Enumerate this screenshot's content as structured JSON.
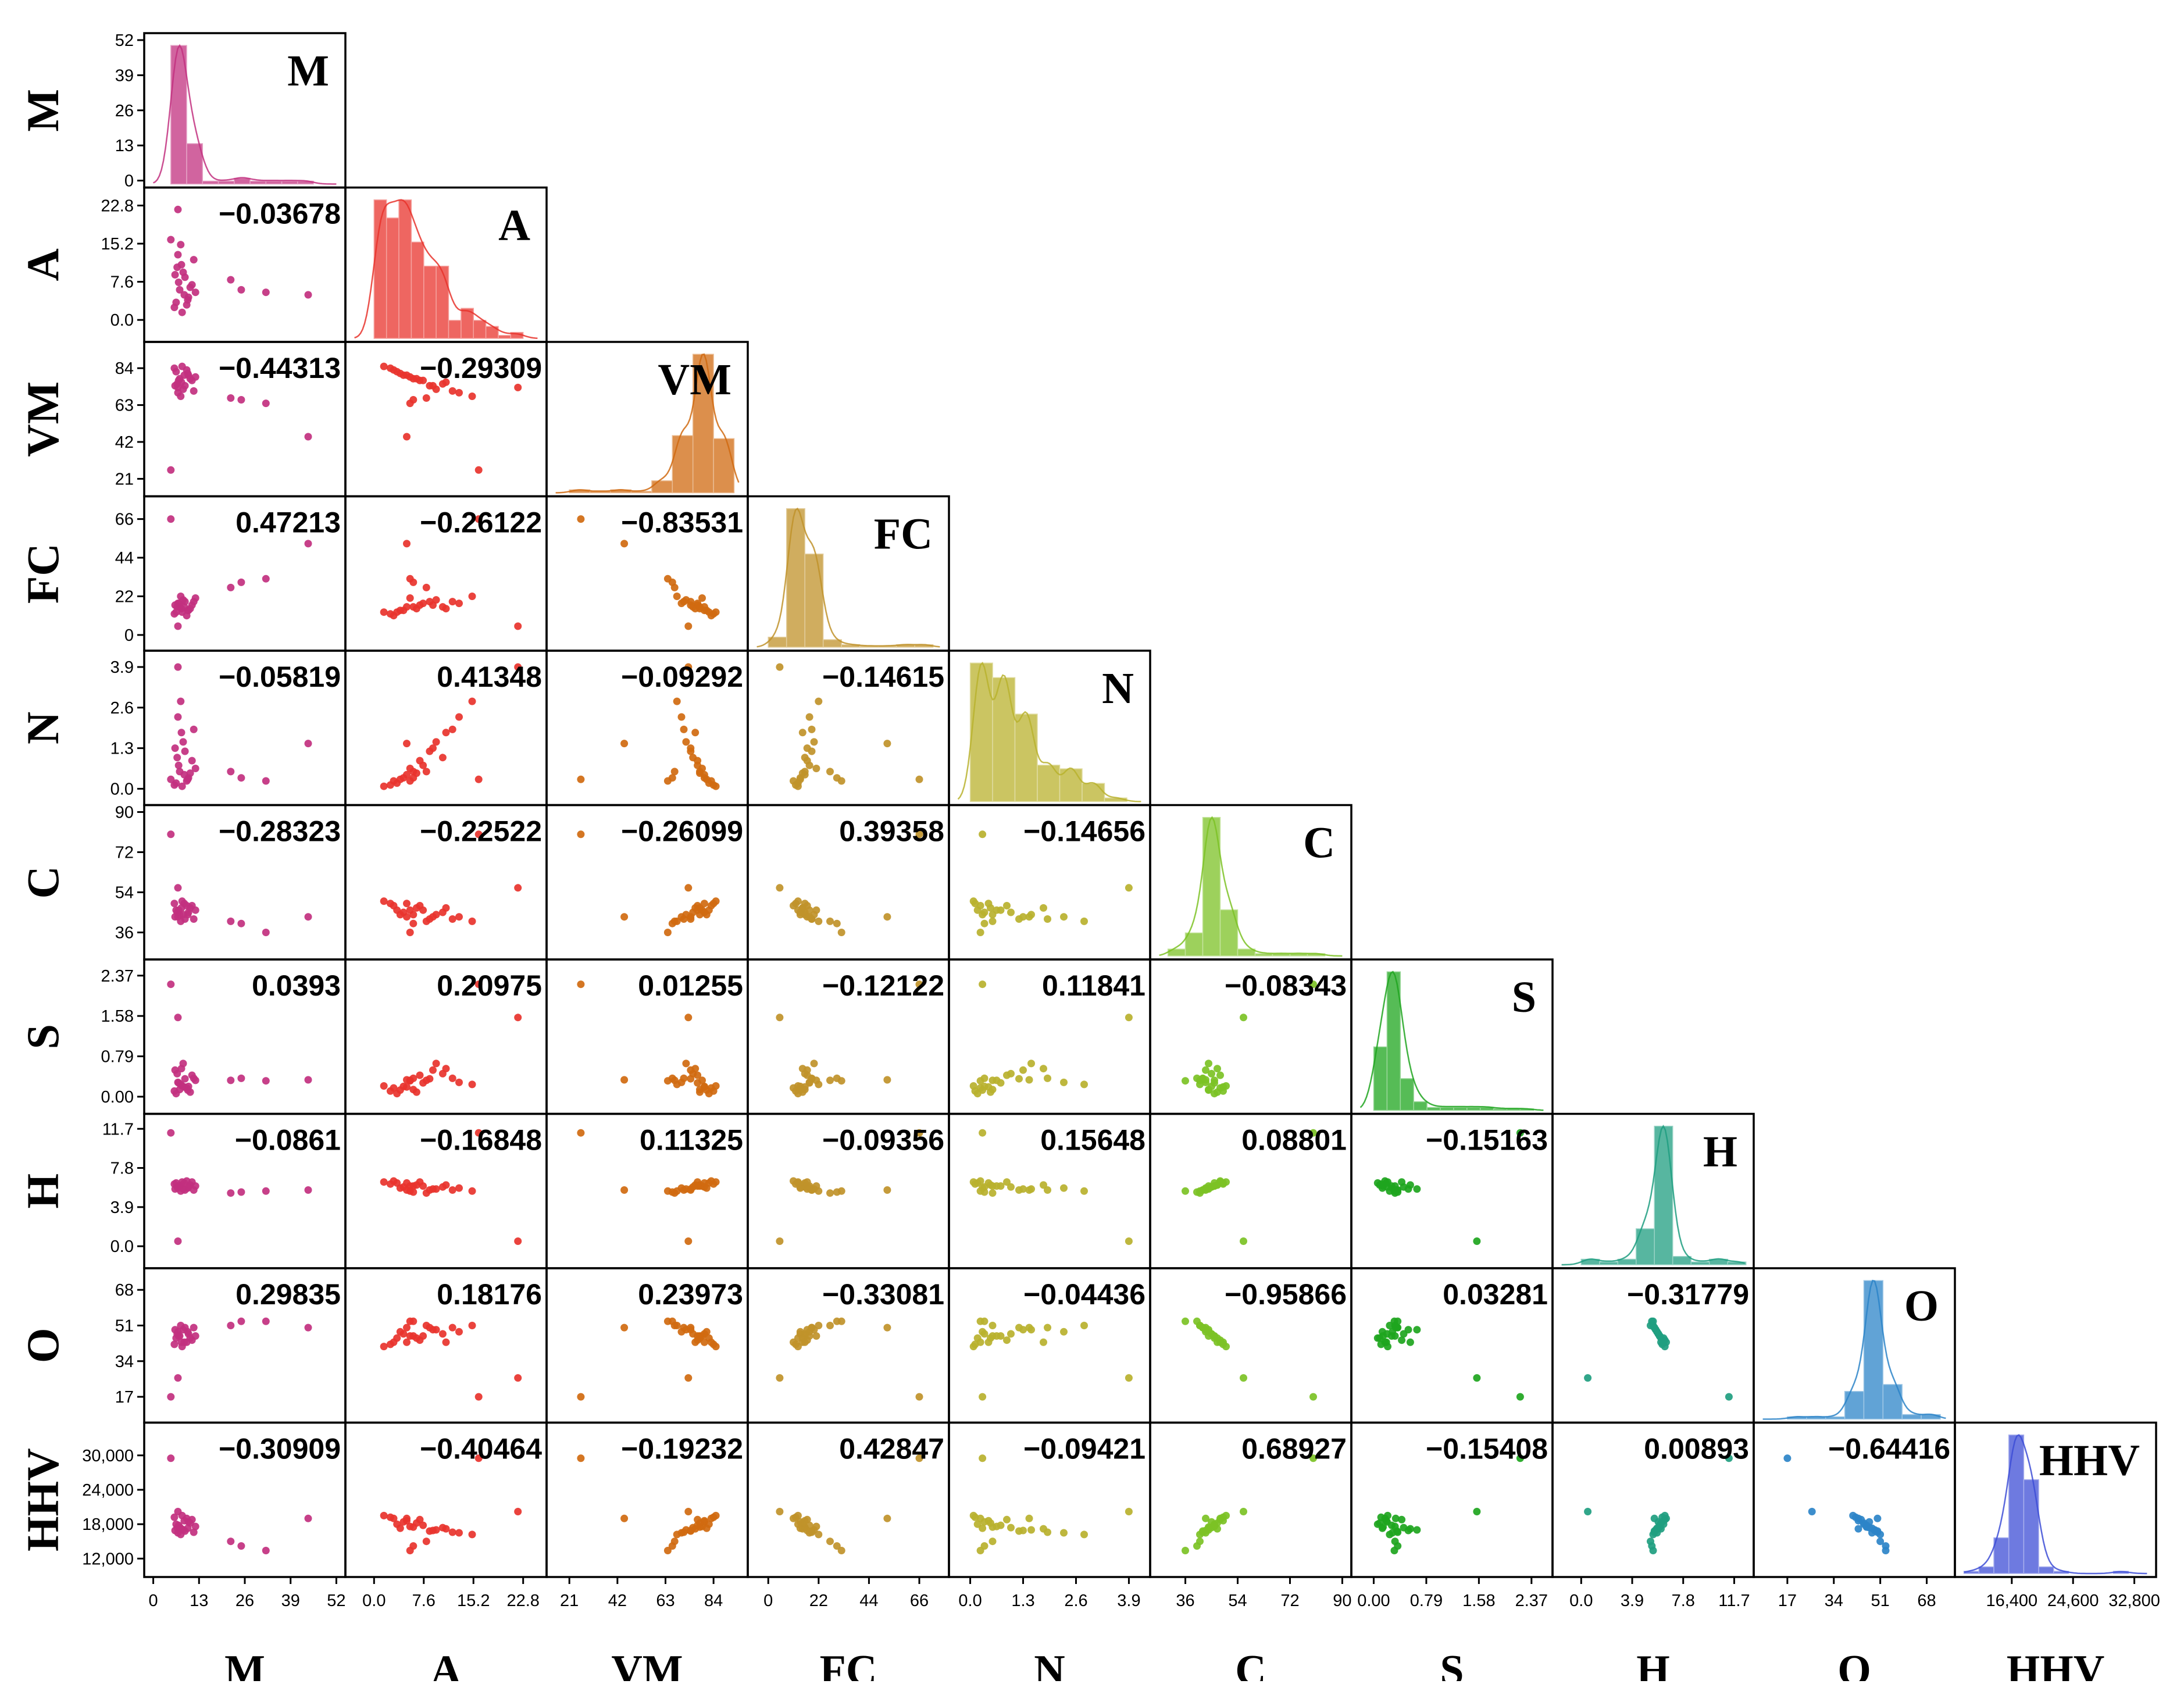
{
  "chart_data": {
    "type": "scatter-matrix",
    "title": "",
    "variables": [
      "M",
      "A",
      "VM",
      "FC",
      "N",
      "C",
      "S",
      "H",
      "O",
      "HHV"
    ],
    "x_axis_labels": [
      "M",
      "A",
      "VM",
      "FC",
      "N",
      "C",
      "S",
      "H",
      "O",
      "HHV"
    ],
    "y_axis_labels": [
      "M",
      "A",
      "VM",
      "FC",
      "N",
      "C",
      "S",
      "H",
      "O",
      "HHV"
    ],
    "colors": [
      "#c2307f",
      "#e8332c",
      "#d06a10",
      "#c0922a",
      "#b9b12e",
      "#7cc225",
      "#1ea51e",
      "#1f9e80",
      "#2c84c8",
      "#3d4dd6"
    ],
    "ranges": [
      [
        0,
        52
      ],
      [
        -3,
        25
      ],
      [
        15,
        95
      ],
      [
        -5,
        75
      ],
      [
        -0.3,
        4.2
      ],
      [
        27,
        90
      ],
      [
        -0.2,
        2.55
      ],
      [
        -1.5,
        12.5
      ],
      [
        8,
        75
      ],
      [
        10000,
        34500
      ]
    ],
    "x_ticks": [
      [
        "0",
        "13",
        "26",
        "39",
        "52"
      ],
      [
        "0.0",
        "7.6",
        "15.2",
        "22.8"
      ],
      [
        "21",
        "42",
        "63",
        "84"
      ],
      [
        "0",
        "22",
        "44",
        "66"
      ],
      [
        "0.0",
        "1.3",
        "2.6",
        "3.9"
      ],
      [
        "36",
        "54",
        "72",
        "90"
      ],
      [
        "0.00",
        "0.79",
        "1.58",
        "2.37"
      ],
      [
        "0.0",
        "3.9",
        "7.8",
        "11.7"
      ],
      [
        "17",
        "34",
        "51",
        "68"
      ],
      [
        "16,400",
        "24,600",
        "32,800"
      ]
    ],
    "y_ticks": [
      [
        "0",
        "13",
        "26",
        "39",
        "52"
      ],
      [
        "0.0",
        "7.6",
        "15.2",
        "22.8"
      ],
      [
        "21",
        "42",
        "63",
        "84"
      ],
      [
        "0",
        "22",
        "44",
        "66"
      ],
      [
        "0.0",
        "1.3",
        "2.6",
        "3.9"
      ],
      [
        "36",
        "54",
        "72",
        "90"
      ],
      [
        "0.00",
        "0.79",
        "1.58",
        "2.37"
      ],
      [
        "0.0",
        "3.9",
        "7.8",
        "11.7"
      ],
      [
        "17",
        "34",
        "51",
        "68"
      ],
      [
        "12,000",
        "18,000",
        "24,000",
        "30,000"
      ]
    ],
    "diagonal_labels": [
      "M",
      "A",
      "VM",
      "FC",
      "N",
      "C",
      "S",
      "H",
      "O",
      "HHV"
    ],
    "correlations": [
      {
        "row": 1,
        "col": 0,
        "value": "−0.03678"
      },
      {
        "row": 2,
        "col": 0,
        "value": "−0.44313"
      },
      {
        "row": 2,
        "col": 1,
        "value": "−0.29309"
      },
      {
        "row": 3,
        "col": 0,
        "value": "0.47213"
      },
      {
        "row": 3,
        "col": 1,
        "value": "−0.26122"
      },
      {
        "row": 3,
        "col": 2,
        "value": "−0.83531"
      },
      {
        "row": 4,
        "col": 0,
        "value": "−0.05819"
      },
      {
        "row": 4,
        "col": 1,
        "value": "0.41348"
      },
      {
        "row": 4,
        "col": 2,
        "value": "−0.09292"
      },
      {
        "row": 4,
        "col": 3,
        "value": "−0.14615"
      },
      {
        "row": 5,
        "col": 0,
        "value": "−0.28323"
      },
      {
        "row": 5,
        "col": 1,
        "value": "−0.22522"
      },
      {
        "row": 5,
        "col": 2,
        "value": "−0.26099"
      },
      {
        "row": 5,
        "col": 3,
        "value": "0.39358"
      },
      {
        "row": 5,
        "col": 4,
        "value": "−0.14656"
      },
      {
        "row": 6,
        "col": 0,
        "value": "0.0393"
      },
      {
        "row": 6,
        "col": 1,
        "value": "0.20975"
      },
      {
        "row": 6,
        "col": 2,
        "value": "0.01255"
      },
      {
        "row": 6,
        "col": 3,
        "value": "−0.12122"
      },
      {
        "row": 6,
        "col": 4,
        "value": "0.11841"
      },
      {
        "row": 6,
        "col": 5,
        "value": "−0.08343"
      },
      {
        "row": 7,
        "col": 0,
        "value": "−0.0861"
      },
      {
        "row": 7,
        "col": 1,
        "value": "−0.16848"
      },
      {
        "row": 7,
        "col": 2,
        "value": "0.11325"
      },
      {
        "row": 7,
        "col": 3,
        "value": "−0.09356"
      },
      {
        "row": 7,
        "col": 4,
        "value": "0.15648"
      },
      {
        "row": 7,
        "col": 5,
        "value": "0.08801"
      },
      {
        "row": 7,
        "col": 6,
        "value": "−0.15163"
      },
      {
        "row": 8,
        "col": 0,
        "value": "0.29835"
      },
      {
        "row": 8,
        "col": 1,
        "value": "0.18176"
      },
      {
        "row": 8,
        "col": 2,
        "value": "0.23973"
      },
      {
        "row": 8,
        "col": 3,
        "value": "−0.33081"
      },
      {
        "row": 8,
        "col": 4,
        "value": "−0.04436"
      },
      {
        "row": 8,
        "col": 5,
        "value": "−0.95866"
      },
      {
        "row": 8,
        "col": 6,
        "value": "0.03281"
      },
      {
        "row": 8,
        "col": 7,
        "value": "−0.31779"
      },
      {
        "row": 9,
        "col": 0,
        "value": "−0.30909"
      },
      {
        "row": 9,
        "col": 1,
        "value": "−0.40464"
      },
      {
        "row": 9,
        "col": 2,
        "value": "−0.19232"
      },
      {
        "row": 9,
        "col": 3,
        "value": "0.42847"
      },
      {
        "row": 9,
        "col": 4,
        "value": "−0.09421"
      },
      {
        "row": 9,
        "col": 5,
        "value": "0.68927"
      },
      {
        "row": 9,
        "col": 6,
        "value": "−0.15408"
      },
      {
        "row": 9,
        "col": 7,
        "value": "0.00893"
      },
      {
        "row": 9,
        "col": 8,
        "value": "−0.64416"
      }
    ],
    "histograms": [
      {
        "variable": "M",
        "bins": [
          [
            5,
            9.5,
            48
          ],
          [
            9.5,
            14,
            14
          ],
          [
            14,
            18.5,
            1
          ],
          [
            18.5,
            23,
            1
          ],
          [
            23,
            27.5,
            2
          ],
          [
            27.5,
            32,
            1
          ],
          [
            32,
            36.5,
            1
          ],
          [
            36.5,
            41,
            1
          ],
          [
            41,
            45.5,
            1
          ]
        ]
      },
      {
        "variable": "A",
        "bins": [
          [
            0,
            1.9,
            23
          ],
          [
            1.9,
            3.8,
            20
          ],
          [
            3.8,
            5.7,
            23
          ],
          [
            5.7,
            7.6,
            16
          ],
          [
            7.6,
            9.5,
            12
          ],
          [
            9.5,
            11.4,
            12
          ],
          [
            11.4,
            13.3,
            3
          ],
          [
            13.3,
            15.2,
            5
          ],
          [
            15.2,
            17.1,
            3
          ],
          [
            17.1,
            19,
            2
          ],
          [
            19,
            20.9,
            0.5
          ],
          [
            20.9,
            22.8,
            1
          ]
        ]
      },
      {
        "variable": "VM",
        "bins": [
          [
            21,
            30,
            1
          ],
          [
            30,
            39,
            0.5
          ],
          [
            39,
            48,
            1
          ],
          [
            48,
            57,
            0.5
          ],
          [
            57,
            66,
            4
          ],
          [
            66,
            75,
            19
          ],
          [
            75,
            84,
            46
          ],
          [
            84,
            93,
            18
          ]
        ]
      },
      {
        "variable": "FC",
        "bins": [
          [
            0,
            8,
            4
          ],
          [
            8,
            16,
            55
          ],
          [
            16,
            24,
            37
          ],
          [
            24,
            32,
            3
          ],
          [
            32,
            40,
            1
          ],
          [
            40,
            48,
            0.5
          ],
          [
            48,
            56,
            0.5
          ],
          [
            56,
            64,
            1
          ],
          [
            64,
            72,
            1
          ]
        ]
      },
      {
        "variable": "N",
        "bins": [
          [
            0,
            0.55,
            38
          ],
          [
            0.55,
            1.1,
            34
          ],
          [
            1.1,
            1.65,
            24
          ],
          [
            1.65,
            2.2,
            10
          ],
          [
            2.2,
            2.75,
            9
          ],
          [
            2.75,
            3.3,
            5
          ],
          [
            3.3,
            3.85,
            1
          ]
        ]
      },
      {
        "variable": "C",
        "bins": [
          [
            30,
            36,
            3
          ],
          [
            36,
            42,
            10
          ],
          [
            42,
            48,
            60
          ],
          [
            48,
            54,
            20
          ],
          [
            54,
            60,
            3
          ],
          [
            60,
            66,
            1
          ],
          [
            66,
            72,
            1
          ],
          [
            72,
            78,
            1
          ],
          [
            78,
            84,
            1
          ]
        ]
      },
      {
        "variable": "S",
        "bins": [
          [
            0,
            0.2,
            22
          ],
          [
            0.2,
            0.4,
            48
          ],
          [
            0.4,
            0.6,
            11
          ],
          [
            0.6,
            0.8,
            3
          ],
          [
            0.8,
            1.0,
            1
          ],
          [
            1.0,
            1.2,
            1
          ],
          [
            1.2,
            1.4,
            1
          ],
          [
            1.4,
            1.6,
            1
          ],
          [
            1.6,
            1.8,
            1
          ],
          [
            1.8,
            2.0,
            0.5
          ],
          [
            2.0,
            2.2,
            0.5
          ],
          [
            2.2,
            2.4,
            0.5
          ]
        ]
      },
      {
        "variable": "H",
        "bins": [
          [
            0,
            1.4,
            2
          ],
          [
            1.4,
            2.8,
            1
          ],
          [
            2.8,
            4.2,
            2
          ],
          [
            4.2,
            5.6,
            13
          ],
          [
            5.6,
            7,
            50
          ],
          [
            7,
            8.4,
            3
          ],
          [
            8.4,
            9.8,
            1
          ],
          [
            9.8,
            11.2,
            2
          ],
          [
            11.2,
            12.6,
            1
          ]
        ]
      },
      {
        "variable": "O",
        "bins": [
          [
            17,
            24,
            1
          ],
          [
            24,
            31,
            1
          ],
          [
            31,
            38,
            1
          ],
          [
            38,
            45,
            12
          ],
          [
            45,
            52,
            60
          ],
          [
            52,
            59,
            15
          ],
          [
            59,
            66,
            2
          ],
          [
            66,
            73,
            2
          ]
        ]
      },
      {
        "variable": "HHV",
        "bins": [
          [
            10000,
            12000,
            1
          ],
          [
            12000,
            14000,
            3
          ],
          [
            14000,
            16000,
            16
          ],
          [
            16000,
            18000,
            62
          ],
          [
            18000,
            20000,
            42
          ],
          [
            20000,
            22000,
            3
          ],
          [
            22000,
            24000,
            1
          ],
          [
            30000,
            32000,
            1
          ]
        ]
      }
    ],
    "scatter_points": [
      [
        7.5,
        6,
        78,
        16,
        0.55,
        44,
        0.14,
        6.0,
        46,
        17500
      ],
      [
        9,
        8.5,
        74,
        19,
        1.2,
        42,
        0.35,
        5.6,
        50,
        16800
      ],
      [
        6.5,
        3.5,
        82,
        13,
        0.18,
        46,
        0.06,
        6.3,
        45,
        18000
      ],
      [
        8,
        11,
        76,
        15,
        1.8,
        47,
        0.55,
        6.1,
        43,
        17200
      ],
      [
        10,
        4.5,
        80,
        14,
        0.35,
        45,
        0.2,
        5.9,
        47,
        18400
      ],
      [
        7,
        13,
        70,
        18,
        2.3,
        43,
        0.28,
        5.8,
        48,
        16500
      ],
      [
        11,
        7,
        77,
        17,
        0.9,
        48,
        0.42,
        6.4,
        44,
        18800
      ],
      [
        6,
        2.5,
        84,
        12,
        0.12,
        49,
        0.11,
        6.2,
        42,
        19200
      ],
      [
        8.5,
        9.5,
        72,
        20,
        1.5,
        44,
        0.65,
        5.7,
        49,
        17000
      ],
      [
        12,
        5.5,
        79,
        21,
        0.65,
        46,
        0.32,
        6.0,
        46,
        17600
      ],
      [
        7.8,
        15,
        68,
        22,
        2.8,
        41,
        0.24,
        5.5,
        51,
        16200
      ],
      [
        9.5,
        3,
        83,
        11,
        0.25,
        48,
        0.17,
        6.5,
        43,
        19000
      ],
      [
        6.8,
        10.5,
        75,
        16,
        1.0,
        45,
        0.45,
        5.9,
        47,
        17400
      ],
      [
        10.5,
        6.5,
        78,
        15,
        0.5,
        47,
        0.09,
        6.1,
        45,
        18200
      ],
      [
        8.2,
        1.5,
        85,
        13,
        0.08,
        50,
        0.21,
        6.4,
        41,
        19500
      ],
      [
        11.5,
        12,
        71,
        19,
        1.9,
        42,
        0.36,
        5.6,
        50,
        16600
      ],
      [
        7.2,
        7.5,
        77,
        18,
        0.75,
        46,
        0.27,
        6.0,
        46,
        17800
      ],
      [
        9.8,
        4,
        81,
        14,
        0.3,
        44,
        0.13,
        5.8,
        48,
        17300
      ],
      [
        6.2,
        9,
        74,
        17,
        1.3,
        43,
        0.52,
        5.7,
        49,
        16900
      ],
      [
        8.8,
        5,
        80,
        16,
        0.45,
        49,
        0.19,
        6.3,
        43,
        18600
      ],
      [
        22,
        8,
        67,
        27,
        0.55,
        41,
        0.32,
        5.3,
        51,
        15000
      ],
      [
        25,
        6,
        66,
        30,
        0.35,
        40,
        0.36,
        5.4,
        53,
        14200
      ],
      [
        32,
        5.5,
        64,
        32,
        0.25,
        36,
        0.31,
        5.5,
        53,
        13400
      ],
      [
        44,
        5,
        45,
        52,
        1.45,
        43,
        0.33,
        5.6,
        50,
        19000
      ],
      [
        5,
        16,
        26,
        66,
        0.3,
        80,
        2.2,
        11.3,
        17,
        29500
      ],
      [
        7,
        22,
        73,
        5,
        3.9,
        56,
        1.55,
        0.5,
        26,
        20200
      ]
    ]
  }
}
